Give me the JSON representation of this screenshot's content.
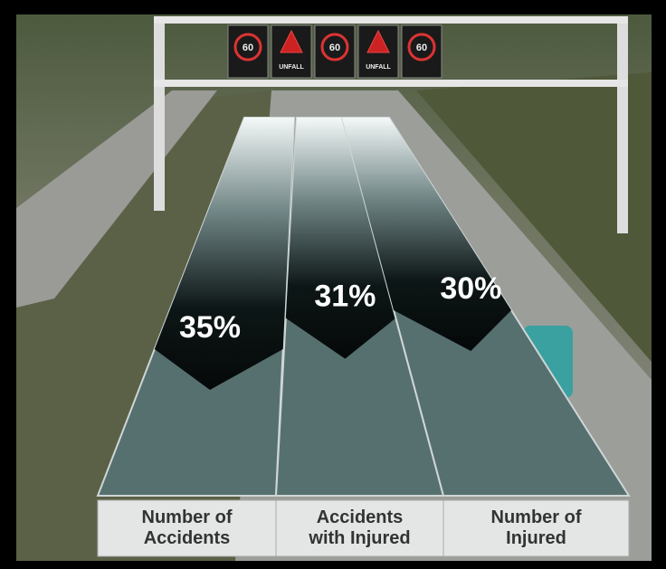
{
  "chart_data": {
    "type": "bar",
    "categories": [
      "Number of Accidents",
      "Accidents with Injured",
      "Number of Injured"
    ],
    "values": [
      35,
      31,
      30
    ],
    "value_labels": [
      "35%",
      "31%",
      "30%"
    ]
  },
  "signs": [
    "60",
    "UNFALL",
    "60",
    "UNFALL",
    "60"
  ]
}
